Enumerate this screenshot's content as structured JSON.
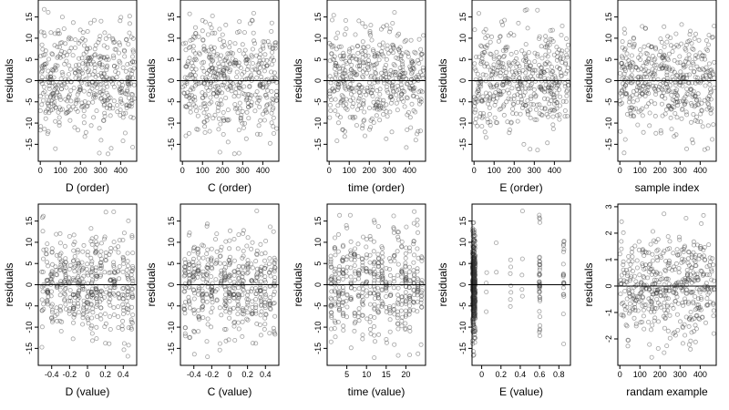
{
  "chart_data": [
    {
      "type": "scatter",
      "xlabel": "D (order)",
      "ylabel": "residuals",
      "xlim": [
        -10,
        480
      ],
      "ylim": [
        -19,
        19
      ],
      "xticks": [
        0,
        100,
        200,
        300,
        400
      ],
      "yticks": [
        -15,
        -10,
        -5,
        0,
        5,
        10,
        15
      ],
      "hline": 0,
      "dist": "uniform",
      "lo": 0,
      "hi": 470,
      "n": 470,
      "seed": 11,
      "ysd": 6
    },
    {
      "type": "scatter",
      "xlabel": "C (order)",
      "ylabel": "residuals",
      "xlim": [
        -10,
        480
      ],
      "ylim": [
        -19,
        19
      ],
      "xticks": [
        0,
        100,
        200,
        300,
        400
      ],
      "yticks": [
        -15,
        -10,
        -5,
        0,
        5,
        10,
        15
      ],
      "hline": 0,
      "dist": "uniform",
      "lo": 0,
      "hi": 470,
      "n": 470,
      "seed": 12,
      "ysd": 6
    },
    {
      "type": "scatter",
      "xlabel": "time (order)",
      "ylabel": "residuals",
      "xlim": [
        -10,
        480
      ],
      "ylim": [
        -19,
        19
      ],
      "xticks": [
        0,
        100,
        200,
        300,
        400
      ],
      "yticks": [
        -15,
        -10,
        -5,
        0,
        5,
        10,
        15
      ],
      "hline": 0,
      "dist": "uniform",
      "lo": 0,
      "hi": 470,
      "n": 470,
      "seed": 13,
      "ysd": 6
    },
    {
      "type": "scatter",
      "xlabel": "E (order)",
      "ylabel": "residuals",
      "xlim": [
        -10,
        480
      ],
      "ylim": [
        -19,
        19
      ],
      "xticks": [
        0,
        100,
        200,
        300,
        400
      ],
      "yticks": [
        -15,
        -10,
        -5,
        0,
        5,
        10,
        15
      ],
      "hline": 0,
      "dist": "uniform",
      "lo": 0,
      "hi": 470,
      "n": 470,
      "seed": 14,
      "ysd": 6
    },
    {
      "type": "scatter",
      "xlabel": "sample index",
      "ylabel": "residuals",
      "xlim": [
        -10,
        480
      ],
      "ylim": [
        -19,
        19
      ],
      "xticks": [
        0,
        100,
        200,
        300,
        400
      ],
      "yticks": [
        -15,
        -10,
        -5,
        0,
        5,
        10,
        15
      ],
      "hline": 0,
      "dist": "uniform",
      "lo": 0,
      "hi": 470,
      "n": 470,
      "seed": 15,
      "ysd": 6
    },
    {
      "type": "scatter",
      "xlabel": "D (value)",
      "ylabel": "residuals",
      "xlim": [
        -0.55,
        0.55
      ],
      "ylim": [
        -19,
        19
      ],
      "xticks": [
        -0.4,
        -0.2,
        0.0,
        0.2,
        0.4
      ],
      "yticks": [
        -15,
        -10,
        -5,
        0,
        5,
        10,
        15
      ],
      "hline": 0,
      "dist": "levels",
      "levels": [
        -0.5,
        -0.45,
        -0.4,
        -0.35,
        -0.3,
        -0.25,
        -0.2,
        -0.15,
        -0.1,
        -0.05,
        0,
        0.05,
        0.1,
        0.15,
        0.2,
        0.25,
        0.3,
        0.35,
        0.4,
        0.45,
        0.5
      ],
      "jitter": 0.012,
      "n": 470,
      "seed": 21,
      "ysd": 6
    },
    {
      "type": "scatter",
      "xlabel": "C (value)",
      "ylabel": "residuals",
      "xlim": [
        -0.55,
        0.55
      ],
      "ylim": [
        -19,
        19
      ],
      "xticks": [
        -0.4,
        -0.2,
        0.0,
        0.2,
        0.4
      ],
      "yticks": [
        -15,
        -10,
        -5,
        0,
        5,
        10,
        15
      ],
      "hline": 0,
      "dist": "levels",
      "levels": [
        -0.5,
        -0.45,
        -0.4,
        -0.35,
        -0.3,
        -0.25,
        -0.2,
        -0.15,
        -0.1,
        -0.05,
        0,
        0.05,
        0.1,
        0.15,
        0.2,
        0.25,
        0.3,
        0.35,
        0.4,
        0.45,
        0.5
      ],
      "jitter": 0.01,
      "n": 470,
      "seed": 22,
      "ysd": 6
    },
    {
      "type": "scatter",
      "xlabel": "time (value)",
      "ylabel": "residuals",
      "xlim": [
        0,
        25
      ],
      "ylim": [
        -19,
        19
      ],
      "xticks": [
        5,
        10,
        15,
        20
      ],
      "yticks": [
        -15,
        -10,
        -5,
        0,
        5,
        10,
        15
      ],
      "hline": 0,
      "dist": "levels",
      "levels": [
        1,
        2,
        3,
        4,
        5,
        6,
        7,
        8,
        9,
        10,
        11,
        12,
        13,
        14,
        15,
        16,
        17,
        18,
        19,
        20,
        21,
        22,
        23,
        24
      ],
      "jitter": 0.15,
      "n": 470,
      "seed": 23,
      "ysd": 6
    },
    {
      "type": "scatter",
      "xlabel": "E (value)",
      "ylabel": "residuals",
      "xlim": [
        -0.1,
        0.92
      ],
      "ylim": [
        -19,
        19
      ],
      "xticks": [
        0.0,
        0.2,
        0.4,
        0.6,
        0.8
      ],
      "yticks": [
        -15,
        -10,
        -5,
        0,
        5,
        10,
        15
      ],
      "hline": 0,
      "dist": "weighted",
      "levels": [
        -0.09,
        -0.08,
        -0.07,
        0.05,
        0.15,
        0.3,
        0.42,
        0.6,
        0.85
      ],
      "weights": [
        150,
        110,
        90,
        8,
        6,
        8,
        6,
        40,
        12
      ],
      "jitter": 0.004,
      "n": 470,
      "seed": 24,
      "ysd": 6
    },
    {
      "type": "scatter",
      "xlabel": "randam example",
      "ylabel": "residuals",
      "xlim": [
        -10,
        480
      ],
      "ylim": [
        -3,
        3.1
      ],
      "xticks": [
        0,
        100,
        200,
        300,
        400
      ],
      "yticks": [
        -2,
        -1,
        0,
        1,
        2,
        3
      ],
      "hline": 0,
      "dist": "uniform",
      "lo": 0,
      "hi": 470,
      "n": 470,
      "seed": 31,
      "ysd": 1
    }
  ]
}
